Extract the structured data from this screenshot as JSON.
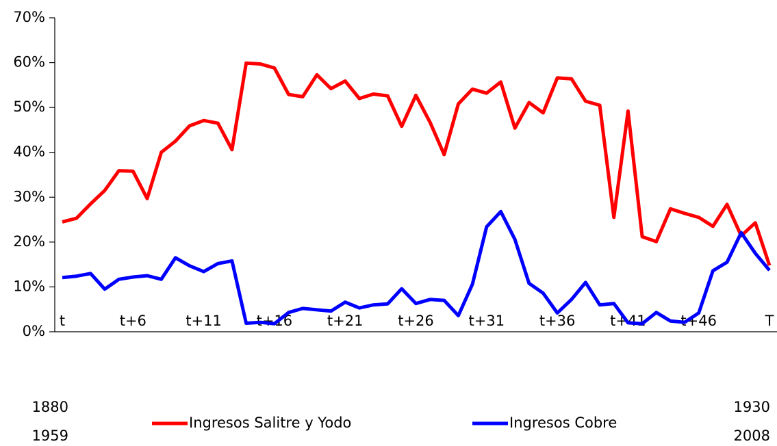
{
  "chart_data": {
    "type": "line",
    "categories": [
      "t",
      null,
      null,
      null,
      null,
      "t+6",
      null,
      null,
      null,
      null,
      "t+11",
      null,
      null,
      null,
      null,
      "t+16",
      null,
      null,
      null,
      null,
      "t+21",
      null,
      null,
      null,
      null,
      "t+26",
      null,
      null,
      null,
      null,
      "t+31",
      null,
      null,
      null,
      null,
      "t+36",
      null,
      null,
      null,
      null,
      "t+41",
      null,
      null,
      null,
      null,
      "t+46",
      null,
      null,
      null,
      null,
      "T"
    ],
    "series": [
      {
        "name": "Ingresos Salitre y Yodo",
        "color": "#ff0000",
        "values": [
          24.5,
          25.3,
          28.5,
          31.5,
          35.9,
          35.8,
          29.7,
          40.0,
          42.5,
          45.9,
          47.1,
          46.5,
          40.6,
          59.9,
          59.7,
          58.8,
          52.9,
          52.4,
          57.3,
          54.2,
          55.9,
          52.0,
          53.0,
          52.6,
          45.8,
          52.7,
          46.7,
          39.5,
          50.8,
          54.1,
          53.2,
          55.7,
          45.4,
          51.1,
          48.8,
          56.6,
          56.4,
          51.4,
          50.5,
          25.5,
          49.2,
          21.2,
          20.1,
          27.4,
          26.4,
          25.5,
          23.5,
          28.4,
          21.4,
          24.3,
          14.8
        ]
      },
      {
        "name": "Ingresos Cobre",
        "color": "#0000ff",
        "values": [
          12.1,
          12.4,
          13.0,
          9.5,
          11.7,
          12.2,
          12.5,
          11.7,
          16.5,
          14.7,
          13.4,
          15.2,
          15.8,
          1.9,
          2.1,
          1.8,
          4.3,
          5.2,
          4.9,
          4.6,
          6.6,
          5.3,
          6.0,
          6.2,
          9.6,
          6.3,
          7.2,
          7.0,
          3.6,
          10.6,
          23.4,
          26.8,
          20.6,
          10.8,
          8.6,
          4.2,
          7.2,
          11.0,
          6.0,
          6.3,
          2.0,
          1.8,
          4.3,
          2.4,
          2.1,
          4.2,
          13.6,
          15.5,
          22.1,
          17.5,
          13.7
        ]
      }
    ],
    "ylim": [
      0,
      70
    ],
    "yticks": [
      {
        "value": 0,
        "label": "0%"
      },
      {
        "value": 10,
        "label": "10%"
      },
      {
        "value": 20,
        "label": "20%"
      },
      {
        "value": 30,
        "label": "30%"
      },
      {
        "value": 40,
        "label": "40%"
      },
      {
        "value": 50,
        "label": "50%"
      },
      {
        "value": 60,
        "label": "60%"
      },
      {
        "value": 70,
        "label": "70%"
      }
    ],
    "annotations": [
      "1880",
      "1959",
      "1930",
      "2008"
    ],
    "legend": "bottom",
    "grid": false
  }
}
